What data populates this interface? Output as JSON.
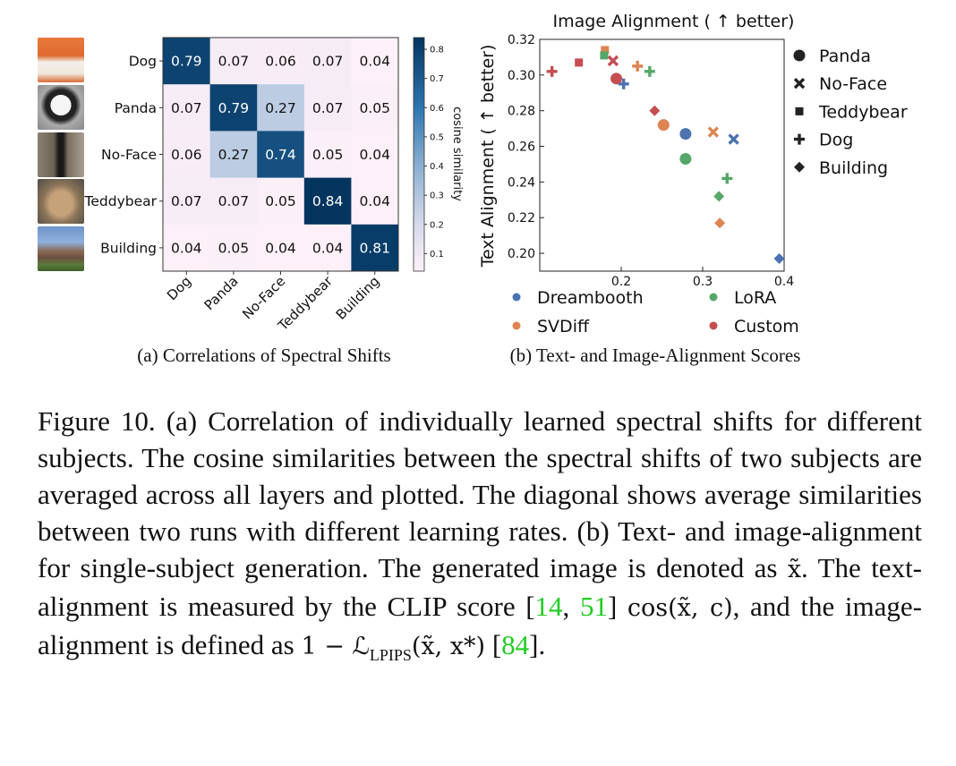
{
  "figure": {
    "thumbnails": [
      "dog",
      "panda",
      "no-face",
      "teddybear",
      "building"
    ]
  },
  "chart_data": [
    {
      "type": "heatmap",
      "rows": [
        "Dog",
        "Panda",
        "No-Face",
        "Teddybear",
        "Building"
      ],
      "cols": [
        "Dog",
        "Panda",
        "No-Face",
        "Teddybear",
        "Building"
      ],
      "values": [
        [
          0.79,
          0.07,
          0.06,
          0.07,
          0.04
        ],
        [
          0.07,
          0.79,
          0.27,
          0.07,
          0.05
        ],
        [
          0.06,
          0.27,
          0.74,
          0.05,
          0.04
        ],
        [
          0.07,
          0.07,
          0.05,
          0.84,
          0.04
        ],
        [
          0.04,
          0.05,
          0.04,
          0.04,
          0.81
        ]
      ],
      "colorbar": {
        "label": "cosine similarity",
        "ticks": [
          "0.1",
          "0.2",
          "0.3",
          "0.4",
          "0.5",
          "0.6",
          "0.7",
          "0.8"
        ],
        "range": [
          0.04,
          0.84
        ]
      },
      "caption": "(a) Correlations of Spectral Shifts"
    },
    {
      "type": "scatter",
      "title": "Image Alignment ( ↑  better)",
      "ylabel": "Text Alignment ( ↑  better)",
      "xlim": [
        0.1,
        0.4
      ],
      "ylim": [
        0.19,
        0.32
      ],
      "xticks": [
        "0.2",
        "0.3",
        "0.4"
      ],
      "yticks": [
        "0.20",
        "0.22",
        "0.24",
        "0.26",
        "0.28",
        "0.30",
        "0.32"
      ],
      "methods": [
        {
          "name": "Dreambooth",
          "color": "#4c72b0"
        },
        {
          "name": "SVDiff",
          "color": "#dd8452"
        },
        {
          "name": "LoRA",
          "color": "#55a868"
        },
        {
          "name": "Custom",
          "color": "#c44e52"
        }
      ],
      "subjects": [
        {
          "name": "Panda",
          "marker": "circle"
        },
        {
          "name": "No-Face",
          "marker": "x"
        },
        {
          "name": "Teddybear",
          "marker": "square"
        },
        {
          "name": "Dog",
          "marker": "plus"
        },
        {
          "name": "Building",
          "marker": "diamond"
        }
      ],
      "points": [
        {
          "method": "Dreambooth",
          "subject": "Panda",
          "x": 0.279,
          "y": 0.267
        },
        {
          "method": "Dreambooth",
          "subject": "No-Face",
          "x": 0.338,
          "y": 0.264
        },
        {
          "method": "Dreambooth",
          "subject": "Dog",
          "x": 0.203,
          "y": 0.295
        },
        {
          "method": "Dreambooth",
          "subject": "Building",
          "x": 0.394,
          "y": 0.197
        },
        {
          "method": "SVDiff",
          "subject": "Panda",
          "x": 0.252,
          "y": 0.272
        },
        {
          "method": "SVDiff",
          "subject": "No-Face",
          "x": 0.313,
          "y": 0.268
        },
        {
          "method": "SVDiff",
          "subject": "Teddybear",
          "x": 0.18,
          "y": 0.314
        },
        {
          "method": "SVDiff",
          "subject": "Dog",
          "x": 0.22,
          "y": 0.305
        },
        {
          "method": "SVDiff",
          "subject": "Building",
          "x": 0.321,
          "y": 0.217
        },
        {
          "method": "LoRA",
          "subject": "Panda",
          "x": 0.279,
          "y": 0.253
        },
        {
          "method": "LoRA",
          "subject": "Teddybear",
          "x": 0.179,
          "y": 0.311
        },
        {
          "method": "LoRA",
          "subject": "Dog",
          "x": 0.235,
          "y": 0.302
        },
        {
          "method": "LoRA",
          "subject": "Dog",
          "x": 0.33,
          "y": 0.242
        },
        {
          "method": "LoRA",
          "subject": "Building",
          "x": 0.32,
          "y": 0.232
        },
        {
          "method": "Custom",
          "subject": "Panda",
          "x": 0.194,
          "y": 0.298
        },
        {
          "method": "Custom",
          "subject": "No-Face",
          "x": 0.19,
          "y": 0.308
        },
        {
          "method": "Custom",
          "subject": "Teddybear",
          "x": 0.148,
          "y": 0.307
        },
        {
          "method": "Custom",
          "subject": "Dog",
          "x": 0.115,
          "y": 0.302
        },
        {
          "method": "Custom",
          "subject": "Building",
          "x": 0.241,
          "y": 0.28
        }
      ],
      "caption": "(b) Text- and Image-Alignment Scores"
    }
  ],
  "caption": {
    "label": "Figure 10.",
    "part1": "(a) Correlation of individually learned spectral shifts for different subjects. The cosine similarities between the spectral shifts of two subjects are averaged across all layers and plotted. The diagonal shows average similarities between two runs with different learning rates. (b) Text- and image-alignment for single-subject generation. The generated image is denoted as",
    "math_x": "x̃",
    "part2": ". The text-alignment is measured by the CLIP score [",
    "ref1": "14",
    "comma": ", ",
    "ref2": "51",
    "part3": "]",
    "math_cos": "cos(x̃, c)",
    "part4": ", and the image-alignment is defined as",
    "math_lpips": "1 − ℒ",
    "math_sub": "LPIPS",
    "math_args": "(x̃, x*)",
    "part5": "[",
    "ref3": "84",
    "part6": "]."
  }
}
